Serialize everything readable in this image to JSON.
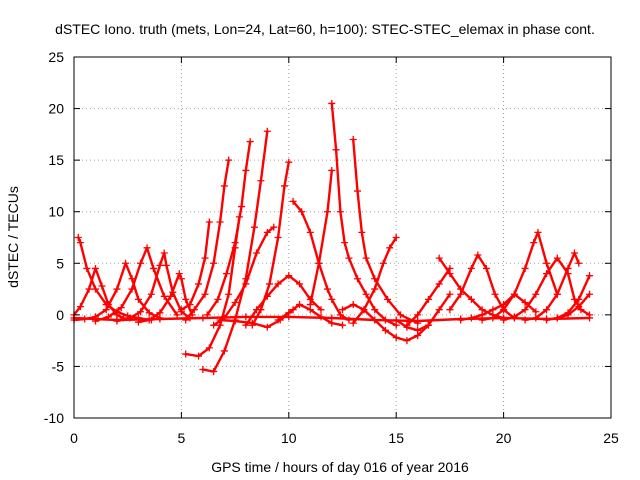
{
  "chart_data": {
    "type": "line",
    "title": "dSTEC Iono. truth (mets, Lon=24, Lat=60, h=100): STEC-STEC_elemax in phase cont.",
    "xlabel": "GPS time / hours of day 016 of year 2016",
    "ylabel": "dSTEC  / TECUs",
    "xlim": [
      0,
      25
    ],
    "ylim": [
      -10,
      25
    ],
    "xticks": [
      0,
      5,
      10,
      15,
      20,
      25
    ],
    "yticks": [
      -10,
      -5,
      0,
      5,
      10,
      15,
      20,
      25
    ],
    "xtick_labels": [
      "0",
      "5",
      "10",
      "15",
      "20",
      "25"
    ],
    "ytick_labels": [
      "-10",
      "-5",
      "0",
      "5",
      "10",
      "15",
      "20",
      "25"
    ],
    "grid": true,
    "legend": "none",
    "marker": "plus",
    "color": "#ff0000",
    "series": [
      {
        "x": [
          0.2,
          0.3,
          0.6,
          1.0,
          1.5,
          2.0,
          2.5,
          3.0,
          3.6
        ],
        "y": [
          7.5,
          7.0,
          4.5,
          2.5,
          1.0,
          0.3,
          -0.1,
          -0.3,
          -0.5
        ]
      },
      {
        "x": [
          0.0,
          0.3,
          0.7,
          1.0,
          1.3,
          1.6,
          2.0,
          2.3
        ],
        "y": [
          0.0,
          0.8,
          2.5,
          4.5,
          2.8,
          1.0,
          0.0,
          -0.3
        ]
      },
      {
        "x": [
          0.0,
          0.5,
          1.0,
          1.5,
          2.0,
          2.4,
          2.7,
          3.0,
          3.5,
          4.0
        ],
        "y": [
          -0.5,
          -0.4,
          -0.2,
          0.5,
          2.5,
          5.0,
          3.5,
          1.5,
          0.2,
          -0.3
        ]
      },
      {
        "x": [
          1.0,
          1.6,
          2.2,
          2.7,
          3.1,
          3.4,
          3.7,
          4.2,
          4.8
        ],
        "y": [
          -0.6,
          -0.2,
          0.7,
          2.5,
          5.0,
          6.5,
          4.5,
          1.8,
          0.0
        ]
      },
      {
        "x": [
          2.0,
          2.6,
          3.1,
          3.6,
          4.0,
          4.2,
          4.3,
          4.6,
          5.0,
          5.4
        ],
        "y": [
          -0.6,
          -0.3,
          0.3,
          2.0,
          4.8,
          6.0,
          4.8,
          2.2,
          0.3,
          -0.3
        ]
      },
      {
        "x": [
          3.0,
          3.5,
          4.0,
          4.5,
          4.9,
          5.0,
          5.2,
          5.5
        ],
        "y": [
          -0.7,
          -0.5,
          0.2,
          1.8,
          4.0,
          3.5,
          1.5,
          0.0
        ]
      },
      {
        "x": [
          5.0,
          5.4,
          5.8,
          6.1,
          6.3
        ],
        "y": [
          0.5,
          1.0,
          3.0,
          5.5,
          9.0
        ]
      },
      {
        "x": [
          5.2,
          5.6,
          6.1,
          6.5,
          6.8,
          7.0,
          7.2
        ],
        "y": [
          -0.5,
          0.5,
          2.0,
          5.0,
          9.0,
          12.5,
          15.0
        ]
      },
      {
        "x": [
          6.2,
          6.7,
          7.1,
          7.5,
          7.8,
          8.0,
          8.2
        ],
        "y": [
          0.0,
          1.5,
          4.0,
          7.0,
          10.5,
          14.0,
          16.8
        ]
      },
      {
        "x": [
          5.2,
          5.8,
          6.3,
          6.8,
          7.2,
          7.5,
          7.7
        ],
        "y": [
          -3.8,
          -4.0,
          -3.2,
          -1.0,
          2.0,
          6.5,
          9.5
        ]
      },
      {
        "x": [
          6.0,
          6.5,
          7.0,
          7.5,
          8.0,
          8.4,
          8.7,
          9.0
        ],
        "y": [
          -5.3,
          -5.5,
          -3.5,
          -0.5,
          3.5,
          8.5,
          13.0,
          17.8
        ]
      },
      {
        "x": [
          6.5,
          7.0,
          7.5,
          8.0,
          8.5,
          9.0,
          9.3
        ],
        "y": [
          -1.0,
          -0.3,
          1.2,
          3.0,
          6.0,
          8.0,
          8.5
        ]
      },
      {
        "x": [
          8.3,
          8.7,
          9.1,
          9.5,
          9.8,
          10.0
        ],
        "y": [
          -1.0,
          0.5,
          3.0,
          7.5,
          12.5,
          14.8
        ]
      },
      {
        "x": [
          6.8,
          7.5,
          8.3,
          9.0,
          9.6,
          10.2
        ],
        "y": [
          -0.5,
          -0.6,
          -0.8,
          -1.2,
          -0.5,
          0.5
        ]
      },
      {
        "x": [
          8.0,
          8.5,
          9.0,
          9.5,
          10.0,
          10.5,
          11.0,
          11.5
        ],
        "y": [
          -1.0,
          0.5,
          1.8,
          3.0,
          3.8,
          3.0,
          1.5,
          0.5
        ]
      },
      {
        "x": [
          9.5,
          10.0,
          10.5,
          11.0,
          11.5,
          12.0,
          12.5
        ],
        "y": [
          -0.5,
          0.2,
          1.0,
          0.5,
          -0.2,
          -0.8,
          -1.0
        ]
      },
      {
        "x": [
          10.2,
          10.6,
          11.0,
          11.4,
          11.8,
          12.0,
          12.4,
          12.8
        ],
        "y": [
          11.0,
          10.0,
          8.0,
          5.0,
          2.5,
          1.5,
          0.0,
          -0.5
        ]
      },
      {
        "x": [
          11.0,
          11.4,
          11.8,
          12.0
        ],
        "y": [
          1.0,
          5.0,
          10.0,
          14.0
        ]
      },
      {
        "x": [
          12.0,
          12.2,
          12.4,
          12.6,
          12.8,
          13.2,
          13.6,
          14.0,
          14.5,
          15.0
        ],
        "y": [
          20.5,
          16.0,
          10.0,
          7.0,
          5.5,
          3.5,
          2.0,
          0.5,
          -0.5,
          -1.0
        ]
      },
      {
        "x": [
          13.0,
          13.2,
          13.4,
          13.6,
          14.0,
          14.6,
          15.2,
          16.0
        ],
        "y": [
          17.0,
          12.0,
          8.0,
          5.5,
          3.5,
          1.5,
          0.0,
          -0.8
        ]
      },
      {
        "x": [
          12.5,
          13.0,
          13.5,
          14.0,
          14.5,
          15.0,
          15.5,
          16.0,
          16.5
        ],
        "y": [
          0.5,
          1.0,
          0.5,
          -0.5,
          -1.5,
          -2.2,
          -2.5,
          -2.0,
          -1.0
        ]
      },
      {
        "x": [
          13.0,
          13.5,
          14.0,
          14.4,
          14.7,
          15.0
        ],
        "y": [
          -0.8,
          0.5,
          2.5,
          5.0,
          6.5,
          7.5
        ]
      },
      {
        "x": [
          15.0,
          15.5,
          16.0,
          16.5,
          17.0,
          17.5
        ],
        "y": [
          -0.5,
          -1.2,
          -1.5,
          -1.0,
          0.5,
          2.0
        ]
      },
      {
        "x": [
          15.5,
          16.0,
          16.5,
          17.0,
          17.5
        ],
        "y": [
          -1.0,
          0.0,
          1.5,
          3.0,
          4.5
        ]
      },
      {
        "x": [
          17.0,
          17.5,
          18.0,
          18.5,
          19.0,
          19.5,
          20.0
        ],
        "y": [
          5.5,
          4.0,
          2.5,
          1.5,
          0.5,
          0.0,
          -0.3
        ]
      },
      {
        "x": [
          17.5,
          18.0,
          18.5,
          18.8,
          19.2,
          19.6,
          20.0,
          20.5
        ],
        "y": [
          0.5,
          2.0,
          4.5,
          5.8,
          4.5,
          2.0,
          0.5,
          -0.3
        ]
      },
      {
        "x": [
          18.0,
          18.5,
          19.0,
          19.5,
          20.0,
          20.5,
          21.0,
          21.5
        ],
        "y": [
          -0.5,
          -0.3,
          0.0,
          0.5,
          1.0,
          2.0,
          1.2,
          0.3
        ]
      },
      {
        "x": [
          19.0,
          19.5,
          20.0,
          20.5,
          21.0,
          21.4,
          21.6,
          22.0,
          22.5
        ],
        "y": [
          -0.5,
          -0.3,
          0.5,
          2.0,
          4.5,
          7.0,
          8.0,
          5.0,
          2.0
        ]
      },
      {
        "x": [
          20.0,
          20.5,
          21.0,
          21.5,
          22.0,
          22.5,
          23.0,
          23.3,
          23.6,
          24.0
        ],
        "y": [
          -0.5,
          -0.2,
          0.5,
          2.0,
          4.0,
          5.5,
          4.0,
          1.5,
          0.5,
          0.0
        ]
      },
      {
        "x": [
          21.0,
          21.5,
          22.0,
          22.5,
          23.0,
          23.3,
          23.5
        ],
        "y": [
          -0.5,
          -0.3,
          0.5,
          2.0,
          4.5,
          6.0,
          5.0
        ]
      },
      {
        "x": [
          22.0,
          22.5,
          23.0,
          23.5,
          24.0
        ],
        "y": [
          -0.5,
          -0.3,
          0.2,
          1.5,
          3.8
        ]
      },
      {
        "x": [
          22.5,
          23.0,
          23.5,
          24.0
        ],
        "y": [
          -0.3,
          0.0,
          0.8,
          2.0
        ]
      },
      {
        "x": [
          0.0,
          2.0,
          4.0,
          6.0,
          8.0,
          10.0,
          12.0,
          14.0,
          16.0,
          18.0,
          20.0,
          22.0,
          24.0
        ],
        "y": [
          -0.3,
          -0.5,
          -0.4,
          -0.3,
          -0.2,
          -0.2,
          -0.3,
          -0.5,
          -0.6,
          -0.4,
          -0.3,
          -0.4,
          -0.3
        ]
      }
    ]
  }
}
